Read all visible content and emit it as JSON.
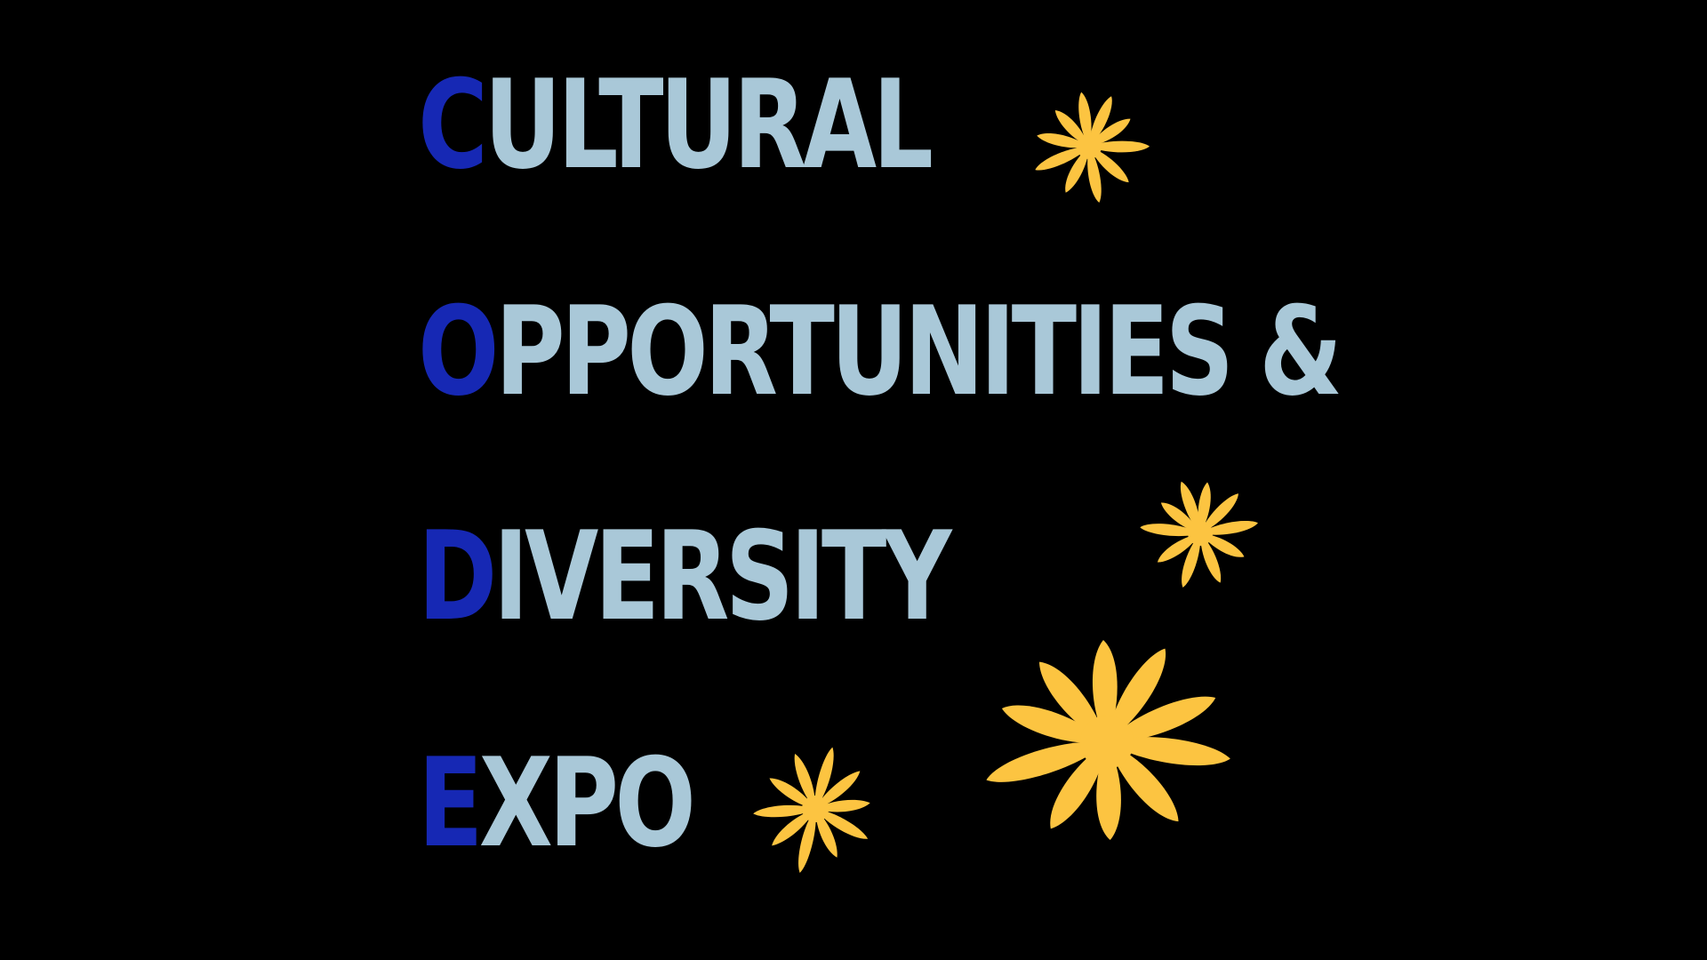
{
  "title_lines": [
    {
      "initial": "C",
      "rest": "ULTURAL"
    },
    {
      "initial": "O",
      "rest": "PPORTUNITIES &"
    },
    {
      "initial": "D",
      "rest": "IVERSITY"
    },
    {
      "initial": "E",
      "rest": "XPO"
    }
  ],
  "colors": {
    "background": "#000000",
    "initial_letter": "#1628b4",
    "word_text": "#a9c8d8",
    "flower": "#fcc441"
  },
  "decorations": [
    "flower-icon",
    "flower-icon",
    "flower-icon",
    "flower-icon"
  ]
}
